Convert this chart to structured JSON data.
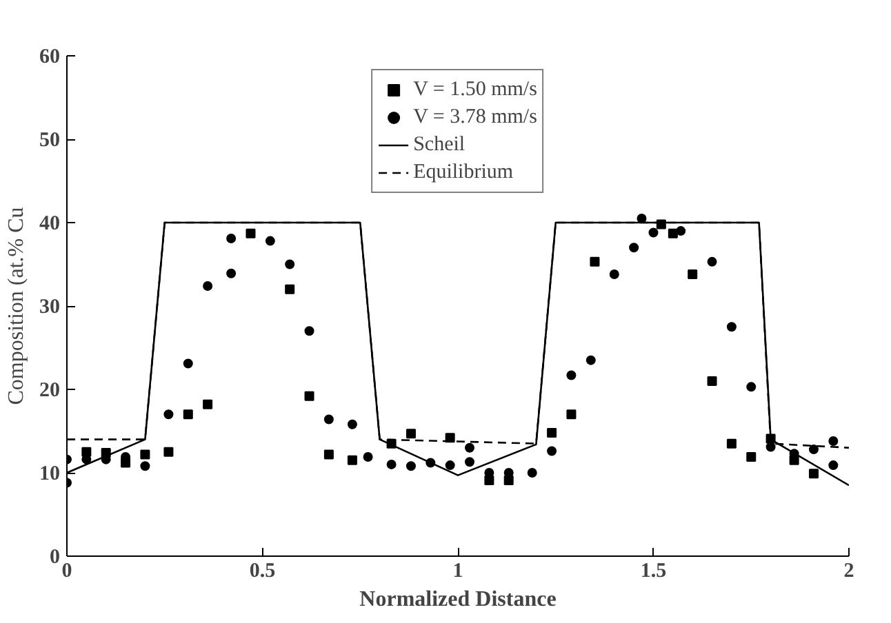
{
  "chart_data": {
    "type": "scatter",
    "xlabel": "Normalized Distance",
    "ylabel": "Composition (at.% Cu",
    "xlim": [
      0,
      2
    ],
    "ylim": [
      0,
      60
    ],
    "xticks": [
      0,
      0.5,
      1,
      1.5,
      2
    ],
    "yticks": [
      0,
      10,
      20,
      30,
      40,
      50,
      60
    ],
    "grid": false,
    "legend": "top",
    "series": [
      {
        "name": "V = 1.50 mm/s",
        "color": "#000000",
        "marker": "square",
        "x": [
          0.05,
          0.1,
          0.15,
          0.2,
          0.26,
          0.31,
          0.36,
          0.47,
          0.57,
          0.62,
          0.67,
          0.73,
          0.83,
          0.88,
          0.98,
          1.08,
          1.13,
          1.24,
          1.29,
          1.35,
          1.52,
          1.55,
          1.6,
          1.65,
          1.7,
          1.75,
          1.8,
          1.86,
          1.91
        ],
        "values": [
          12.5,
          12.4,
          11.2,
          12.2,
          12.5,
          17.0,
          18.2,
          38.7,
          32.0,
          19.2,
          12.2,
          11.5,
          13.5,
          14.7,
          14.2,
          9.1,
          9.1,
          14.8,
          17.0,
          35.3,
          39.8,
          38.7,
          33.8,
          21.0,
          13.5,
          11.9,
          14.1,
          11.5,
          9.9
        ]
      },
      {
        "name": "V = 3.78 mm/s",
        "color": "#000000",
        "marker": "circle",
        "x": [
          0,
          0,
          0.05,
          0.1,
          0.15,
          0.2,
          0.26,
          0.31,
          0.36,
          0.42,
          0.42,
          0.52,
          0.57,
          0.62,
          0.67,
          0.73,
          0.77,
          0.83,
          0.88,
          0.93,
          0.98,
          1.03,
          1.03,
          1.08,
          1.13,
          1.19,
          1.24,
          1.29,
          1.34,
          1.4,
          1.45,
          1.47,
          1.5,
          1.57,
          1.65,
          1.7,
          1.75,
          1.8,
          1.86,
          1.91,
          1.96,
          1.96
        ],
        "values": [
          11.6,
          8.8,
          11.6,
          11.6,
          11.9,
          10.8,
          17.0,
          23.1,
          32.4,
          33.9,
          38.1,
          37.8,
          35.0,
          27.0,
          16.4,
          15.8,
          11.9,
          11.0,
          10.8,
          11.2,
          10.9,
          13.0,
          11.3,
          10.0,
          10.0,
          10.0,
          12.6,
          21.7,
          23.5,
          33.8,
          37.0,
          40.5,
          38.8,
          39.0,
          35.3,
          27.5,
          20.3,
          13.1,
          12.3,
          12.8,
          13.8,
          10.9
        ]
      },
      {
        "name": "Scheil",
        "type": "line",
        "color": "#000000",
        "line_style": "solid",
        "x": [
          0,
          0.2,
          0.25,
          0.75,
          0.8,
          1.0,
          1.2,
          1.25,
          1.77,
          1.8,
          2.0
        ],
        "values": [
          10,
          14,
          40,
          40,
          14,
          9.7,
          13.4,
          40,
          40,
          14,
          8.5
        ]
      },
      {
        "name": "Equilibrium",
        "type": "line",
        "color": "#000000",
        "line_style": "dashed",
        "x": [
          0,
          0.2,
          0.25,
          0.75,
          0.8,
          1.2,
          1.25,
          1.77,
          1.8,
          2.0
        ],
        "values": [
          14,
          14,
          40,
          40,
          14,
          13.5,
          40,
          40,
          13.5,
          13
        ]
      }
    ]
  }
}
